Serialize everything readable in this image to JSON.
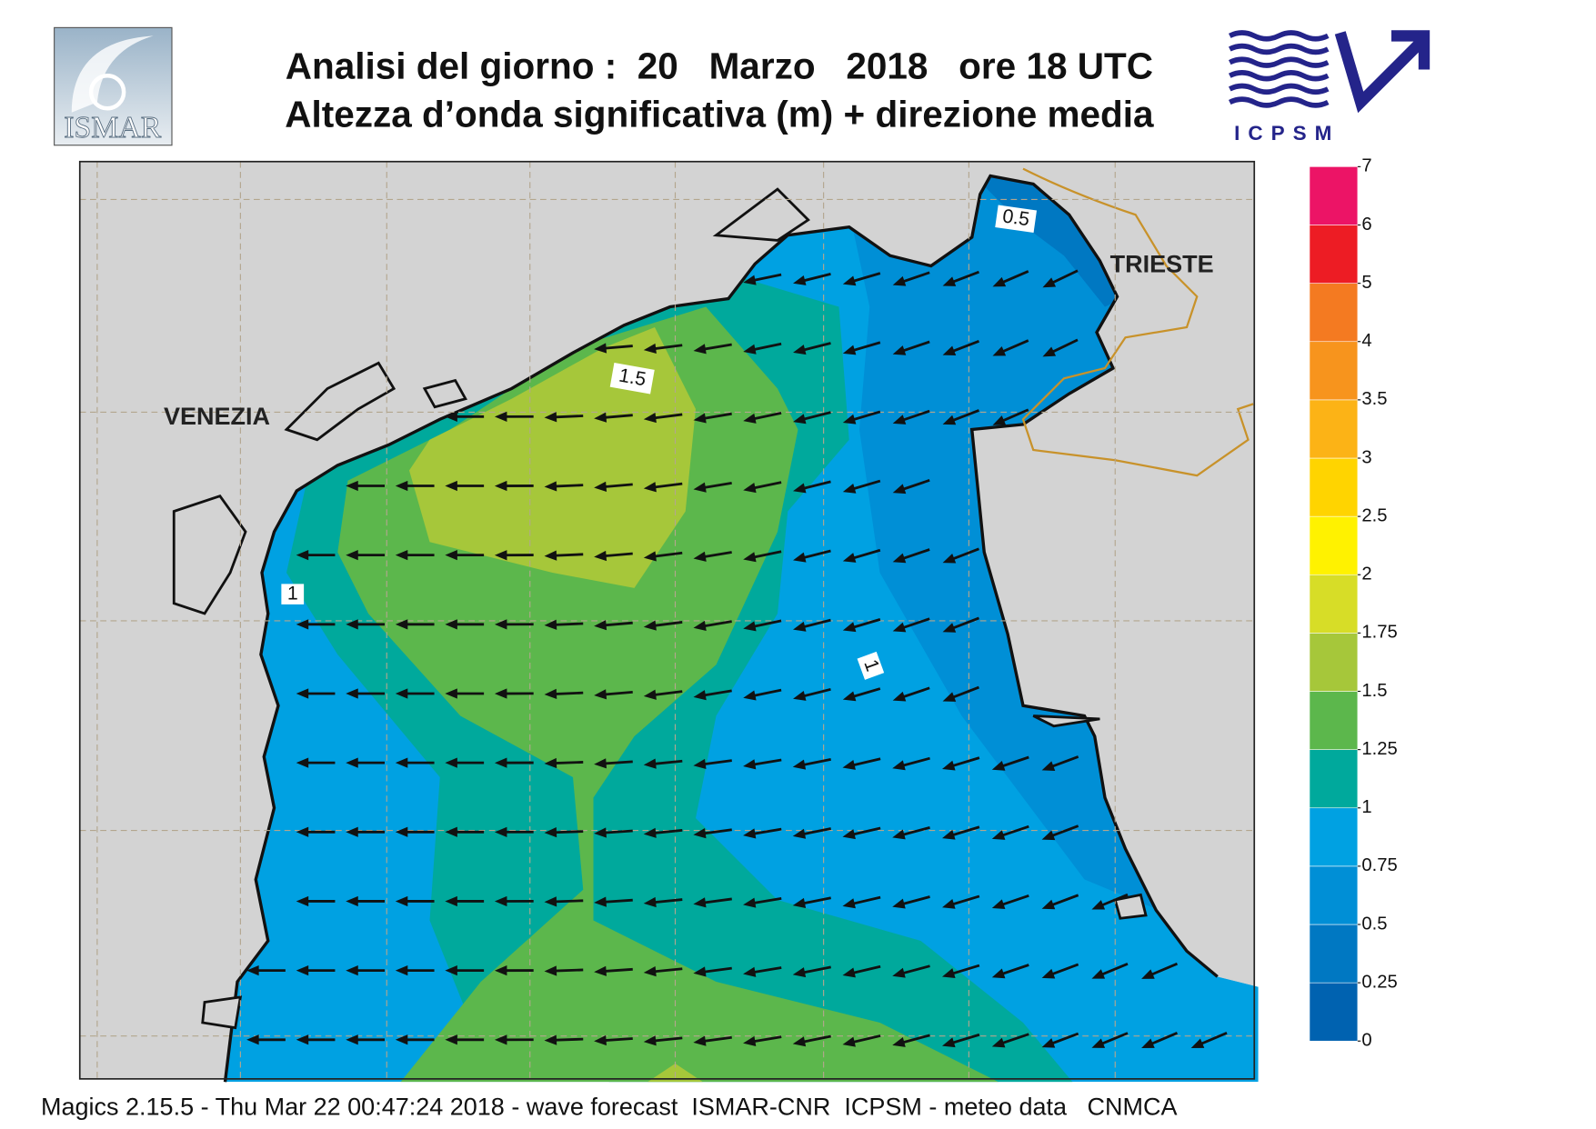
{
  "header": {
    "title_line1": "Analisi del giorno :  20   Marzo   2018   ore 18 UTC",
    "title_line2": "Altezza d’onda significativa (m) + direzione media"
  },
  "logos": {
    "left": "ISMAR",
    "right": "ICPSM"
  },
  "map": {
    "places": [
      "VENEZIA",
      "TRIESTE"
    ],
    "contour_labels": [
      "1.5",
      "1",
      "1",
      "0.5"
    ]
  },
  "colorbar": {
    "levels": [
      0,
      0.25,
      0.5,
      0.75,
      1,
      1.25,
      1.5,
      1.75,
      2,
      2.5,
      3,
      3.5,
      4,
      5,
      6,
      7
    ],
    "colors": [
      "#0062b0",
      "#0078c2",
      "#008fd6",
      "#00a1e2",
      "#00a99c",
      "#5cb74c",
      "#a6c73a",
      "#d7dd27",
      "#fff200",
      "#ffd400",
      "#fcb316",
      "#f7941d",
      "#f47a21",
      "#ed1c24",
      "#ec1466"
    ]
  },
  "footer": "Magics 2.15.5 - Thu Mar 22 00:47:24 2018 - wave forecast  ISMAR-CNR  ICPSM - meteo data   CNMCA"
}
